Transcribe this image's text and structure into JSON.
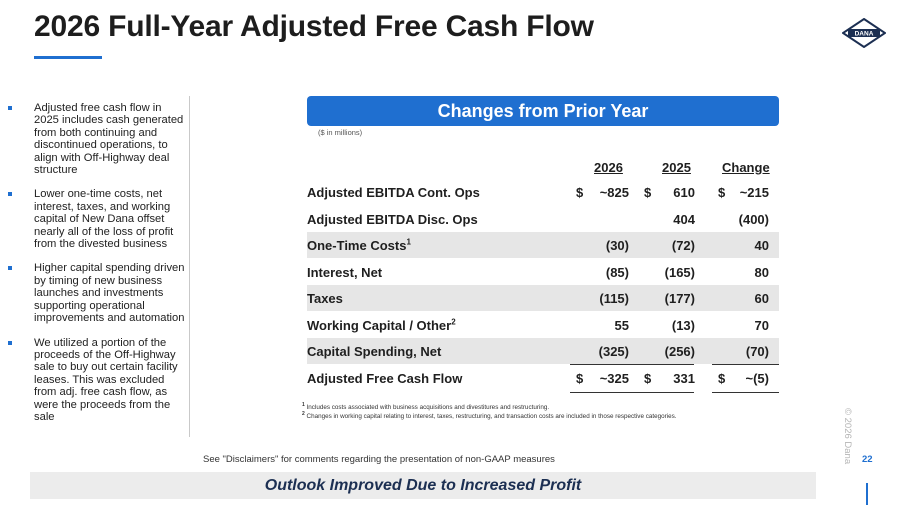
{
  "title": "2026 Full-Year Adjusted Free Cash Flow",
  "logo_text": "DANA",
  "bullets": [
    "Adjusted free cash flow in 2025 includes cash generated from both continuing and discontinued operations, to align with Off-Highway deal structure",
    "Lower one-time costs, net interest, taxes, and working capital of New Dana offset nearly all of the loss of profit from the divested business",
    "Higher capital spending driven by timing of new business launches and investments supporting operational improvements and automation",
    "We utilized a portion of the proceeds of the Off-Highway sale to buy out certain facility leases. This was excluded from adj. free cash flow, as were the proceeds from the sale"
  ],
  "banner": "Changes from Prior Year",
  "units": "($ in millions)",
  "table": {
    "headers": {
      "y2026": "2026",
      "y2025": "2025",
      "change": "Change"
    },
    "rows": [
      {
        "label": "Adjusted EBITDA Cont. Ops",
        "sup": "",
        "cur26": "$",
        "v26": "~825",
        "cur25": "$",
        "v25": "610",
        "curC": "$",
        "chg": "~215"
      },
      {
        "label": "Adjusted EBITDA Disc. Ops",
        "sup": "",
        "cur26": "",
        "v26": "",
        "cur25": "",
        "v25": "404",
        "curC": "",
        "chg": "(400)"
      },
      {
        "label": "One-Time Costs",
        "sup": "1",
        "cur26": "",
        "v26": "(30)",
        "cur25": "",
        "v25": "(72)",
        "curC": "",
        "chg": "40"
      },
      {
        "label": "Interest, Net",
        "sup": "",
        "cur26": "",
        "v26": "(85)",
        "cur25": "",
        "v25": "(165)",
        "curC": "",
        "chg": "80"
      },
      {
        "label": "Taxes",
        "sup": "",
        "cur26": "",
        "v26": "(115)",
        "cur25": "",
        "v25": "(177)",
        "curC": "",
        "chg": "60"
      },
      {
        "label": "Working Capital / Other",
        "sup": "2",
        "cur26": "",
        "v26": "55",
        "cur25": "",
        "v25": "(13)",
        "curC": "",
        "chg": "70"
      },
      {
        "label": "Capital Spending, Net",
        "sup": "",
        "cur26": "",
        "v26": "(325)",
        "cur25": "",
        "v25": "(256)",
        "curC": "",
        "chg": "(70)"
      },
      {
        "label": "Adjusted Free Cash Flow",
        "sup": "",
        "cur26": "$",
        "v26": "~325",
        "cur25": "$",
        "v25": "331",
        "curC": "$",
        "chg": "~(5)"
      }
    ]
  },
  "notes": {
    "n1_mark": "1",
    "n1": "Includes costs associated with business acquisitions and divestitures and restructuring.",
    "n2_mark": "2",
    "n2": "Changes in working capital relating to interest, taxes, restructuring, and transaction costs are included in those respective categories."
  },
  "disclaimer": "See \"Disclaimers\" for comments regarding the presentation of non-GAAP measures",
  "page_number": "22",
  "footer": "Outlook Improved Due to Increased Profit",
  "copyright": "© 2026 Dana",
  "colors": {
    "accent": "#1f6fd0",
    "shade": "#e6e6e6",
    "footer_text": "#1c2f52"
  }
}
